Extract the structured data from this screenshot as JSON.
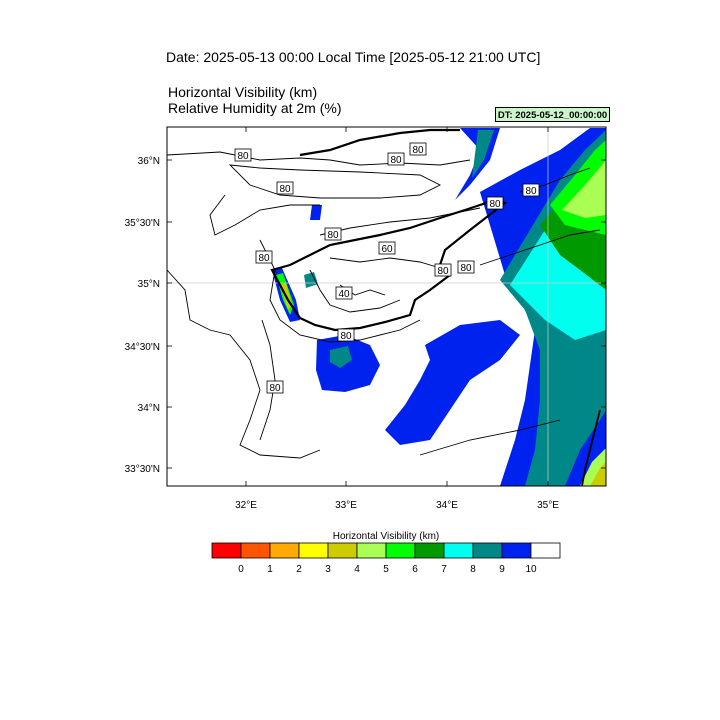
{
  "header": {
    "date_title": "Date: 2025-05-13  00:00 Local Time [2025-05-12  21:00 UTC]",
    "field1": "Horizontal Visibility   (km)",
    "field2": "Relative Humidity at 2m   (%)",
    "dt_badge": "DT: 2025-05-12_00:00:00"
  },
  "map": {
    "lat_labels": [
      "36°N",
      "35°30'N",
      "35°N",
      "34°30'N",
      "34°N",
      "33°30'N"
    ],
    "lon_labels": [
      "32°E",
      "33°E",
      "34°E",
      "35°E"
    ],
    "contour_labels": [
      "80",
      "80",
      "80",
      "80",
      "80",
      "80",
      "80",
      "80",
      "80",
      "60",
      "80",
      "40",
      "80",
      "80",
      "80"
    ]
  },
  "colorbar": {
    "title": "Horizontal Visibility  (km)",
    "tick_labels": [
      "0",
      "1",
      "2",
      "3",
      "4",
      "5",
      "6",
      "7",
      "8",
      "9",
      "10"
    ],
    "colors": [
      "#ff0000",
      "#ff5500",
      "#ffaa00",
      "#ffff00",
      "#cccc00",
      "#aaff55",
      "#00ff00",
      "#009900",
      "#00ffee",
      "#008888",
      "#0022ee",
      "#ffffff"
    ]
  }
}
